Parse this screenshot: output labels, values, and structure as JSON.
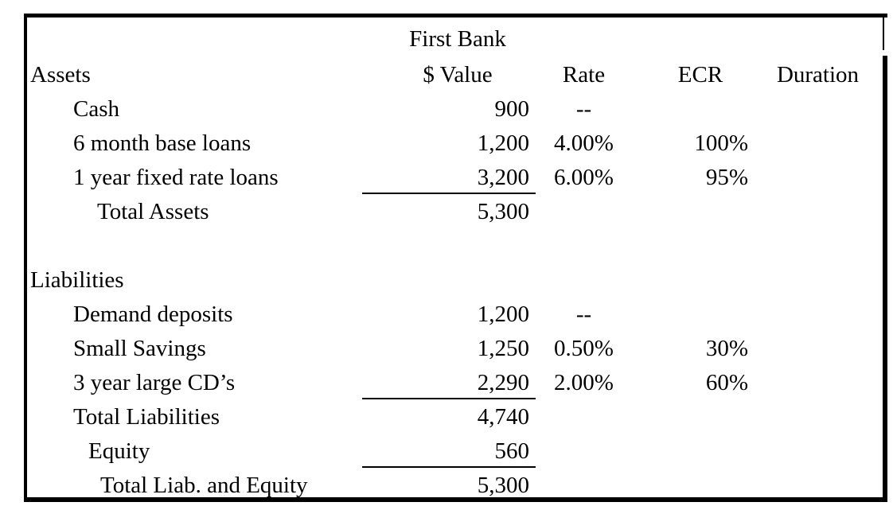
{
  "table": {
    "title": "First Bank",
    "header": {
      "section": "Assets",
      "value": "$ Value",
      "rate": "Rate",
      "ecr": "ECR",
      "duration": "Duration"
    },
    "rows": [
      {
        "label": "Cash",
        "indent": 1,
        "value": "900",
        "rate": "--",
        "ecr": "",
        "underline": false
      },
      {
        "label": "6 month base loans",
        "indent": 1,
        "value": "1,200",
        "rate": "4.00%",
        "ecr": "100%",
        "underline": false
      },
      {
        "label": "1 year fixed rate loans",
        "indent": 1,
        "value": "3,200",
        "rate": "6.00%",
        "ecr": "95%",
        "underline": true
      },
      {
        "label": "Total Assets",
        "indent": 3,
        "value": "5,300",
        "rate": "",
        "ecr": "",
        "underline": false
      },
      {
        "label": "",
        "indent": 0,
        "value": "",
        "rate": "",
        "ecr": "",
        "underline": false
      },
      {
        "label": "Liabilities",
        "indent": 0,
        "value": "",
        "rate": "",
        "ecr": "",
        "underline": false
      },
      {
        "label": "Demand deposits",
        "indent": 1,
        "value": "1,200",
        "rate": "--",
        "ecr": "",
        "underline": false
      },
      {
        "label": "Small Savings",
        "indent": 1,
        "value": "1,250",
        "rate": "0.50%",
        "ecr": "30%",
        "underline": false
      },
      {
        "label": "3 year large CD’s",
        "indent": 1,
        "value": "2,290",
        "rate": "2.00%",
        "ecr": "60%",
        "underline": true
      },
      {
        "label": "Total Liabilities",
        "indent": 1,
        "value": "4,740",
        "rate": "",
        "ecr": "",
        "underline": false
      },
      {
        "label": "Equity",
        "indent": 2,
        "value": "560",
        "rate": "",
        "ecr": "",
        "underline": true
      },
      {
        "label": "Total Liab. and Equity",
        "indent": 4,
        "value": "5,300",
        "rate": "",
        "ecr": "",
        "underline": false
      }
    ]
  }
}
